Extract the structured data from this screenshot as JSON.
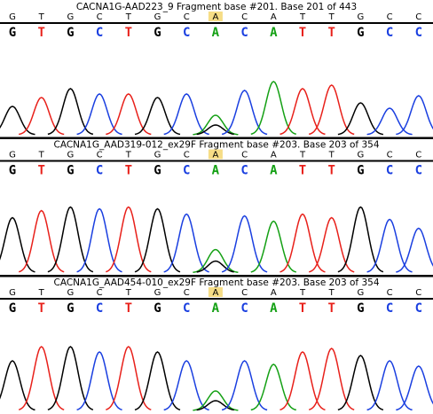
{
  "panels": [
    {
      "header": "CACNA1G-AAD223_9 Fragment base #201. Base 201 of 443",
      "reference": [
        "G",
        "T",
        "G",
        "C",
        "T",
        "G",
        "C",
        "A",
        "C",
        "A",
        "T",
        "T",
        "G",
        "C",
        "C"
      ],
      "called": [
        "G",
        "T",
        "G",
        "C",
        "T",
        "G",
        "C",
        "A",
        "C",
        "A",
        "T",
        "T",
        "G",
        "C",
        "C"
      ]
    },
    {
      "header": "CACNA1G_AAD319-012_ex29F Fragment base #203. Base 203 of 354",
      "reference": [
        "G",
        "T",
        "G",
        "C",
        "T",
        "G",
        "C",
        "A",
        "C",
        "A",
        "T",
        "T",
        "G",
        "C",
        "C"
      ],
      "called": [
        "G",
        "T",
        "G",
        "C",
        "T",
        "G",
        "C",
        "A",
        "C",
        "A",
        "T",
        "T",
        "G",
        "C",
        "C"
      ]
    },
    {
      "header": "CACNA1G_AAD454-010_ex29F Fragment base #203. Base 203 of 354",
      "reference": [
        "G",
        "T",
        "G",
        "C",
        "T",
        "G",
        "C",
        "A",
        "C",
        "A",
        "T",
        "T",
        "G",
        "C",
        "C"
      ],
      "called": [
        "G",
        "T",
        "G",
        "C",
        "T",
        "G",
        "C",
        "A",
        "C",
        "A",
        "T",
        "T",
        "G",
        "C",
        "C"
      ]
    }
  ]
}
